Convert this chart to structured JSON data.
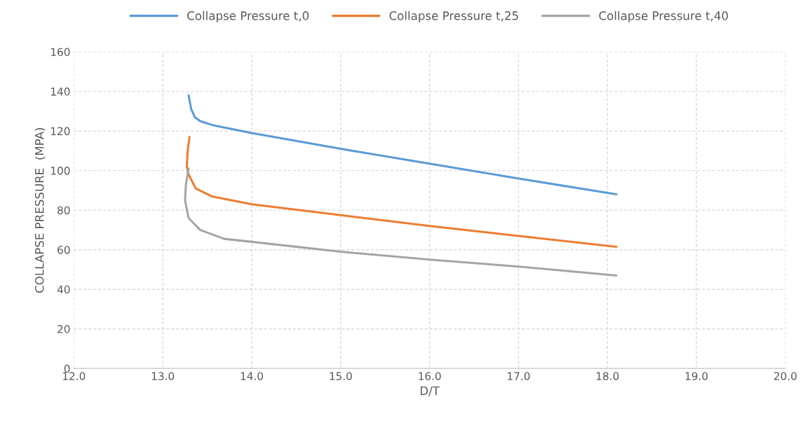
{
  "chart_data": {
    "type": "line",
    "xlabel": "D/T",
    "ylabel": "COLLAPSE PRESSURE  (MPA)",
    "xlim": [
      12,
      20
    ],
    "ylim": [
      0,
      160
    ],
    "xticks": [
      {
        "value": 12,
        "label": "12.0"
      },
      {
        "value": 13,
        "label": "13.0"
      },
      {
        "value": 14,
        "label": "14.0"
      },
      {
        "value": 15,
        "label": "15.0"
      },
      {
        "value": 16,
        "label": "16.0"
      },
      {
        "value": 17,
        "label": "17.0"
      },
      {
        "value": 18,
        "label": "18.0"
      },
      {
        "value": 19,
        "label": "19.0"
      },
      {
        "value": 20,
        "label": "20.0"
      }
    ],
    "yticks": [
      0,
      20,
      40,
      60,
      80,
      100,
      120,
      140,
      160
    ],
    "grid": true,
    "legend": "top",
    "marker": "none",
    "line_style": "solid",
    "series": [
      {
        "name": "Collapse Pressure t,0",
        "color": "#5b9bd5",
        "x": [
          13.29,
          13.32,
          13.36,
          13.42,
          13.56,
          14.0,
          15.0,
          16.0,
          17.0,
          18.1
        ],
        "values": [
          138,
          131,
          127,
          125,
          123,
          119,
          111,
          103.5,
          96,
          88
        ]
      },
      {
        "name": "Collapse Pressure t,25",
        "color": "#ed7d31",
        "x": [
          13.3,
          13.28,
          13.27,
          13.29,
          13.37,
          13.55,
          14.0,
          15.0,
          16.0,
          17.0,
          18.1
        ],
        "values": [
          117,
          110,
          102,
          98,
          91,
          87,
          83,
          77.5,
          72,
          67,
          61.5
        ]
      },
      {
        "name": "Collapse Pressure t,40",
        "color": "#a5a5a5",
        "x": [
          13.29,
          13.26,
          13.25,
          13.29,
          13.42,
          13.69,
          14.0,
          15.0,
          16.0,
          17.0,
          18.1
        ],
        "values": [
          101,
          93,
          85,
          76,
          70,
          65.5,
          64,
          59,
          55,
          51.5,
          47
        ]
      }
    ]
  }
}
